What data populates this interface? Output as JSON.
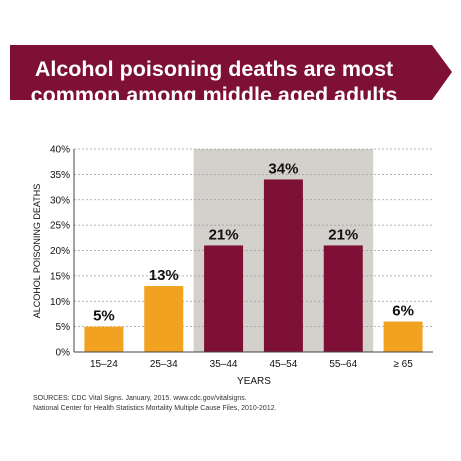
{
  "banner": {
    "line1": "Alcohol poisoning deaths are most",
    "line2": "common among middle aged adults"
  },
  "colors": {
    "banner": "#7d1034",
    "highlight_band": "#d4d0cb",
    "maroon_bar": "#7d1034",
    "orange_bar": "#f2a221",
    "grid": "#9c9c9c",
    "text": "#111111"
  },
  "chart_data": {
    "type": "bar",
    "categories": [
      "15–24",
      "25–34",
      "35–44",
      "45–54",
      "55–64",
      "≥ 65"
    ],
    "values": [
      5,
      13,
      21,
      34,
      21,
      6
    ],
    "value_labels": [
      "5%",
      "13%",
      "21%",
      "34%",
      "21%",
      "6%"
    ],
    "bar_colors": [
      "orange",
      "orange",
      "maroon",
      "maroon",
      "maroon",
      "orange"
    ],
    "highlighted_categories": [
      "35–44",
      "45–54",
      "55–64"
    ],
    "xlabel": "YEARS",
    "ylabel": "ALCOHOL POISONING DEATHS",
    "ylim": [
      0,
      40
    ],
    "y_ticks": [
      "0%",
      "5%",
      "10%",
      "15%",
      "20%",
      "25%",
      "30%",
      "35%",
      "40%"
    ],
    "grid": "horizontal dashed"
  },
  "sources": {
    "line1": "SOURCES: CDC Vital Signs. January, 2015. www.cdc.gov/vitalsigns.",
    "line2": "National Center for Health Statistics Mortality Multiple Cause Files, 2010-2012."
  }
}
